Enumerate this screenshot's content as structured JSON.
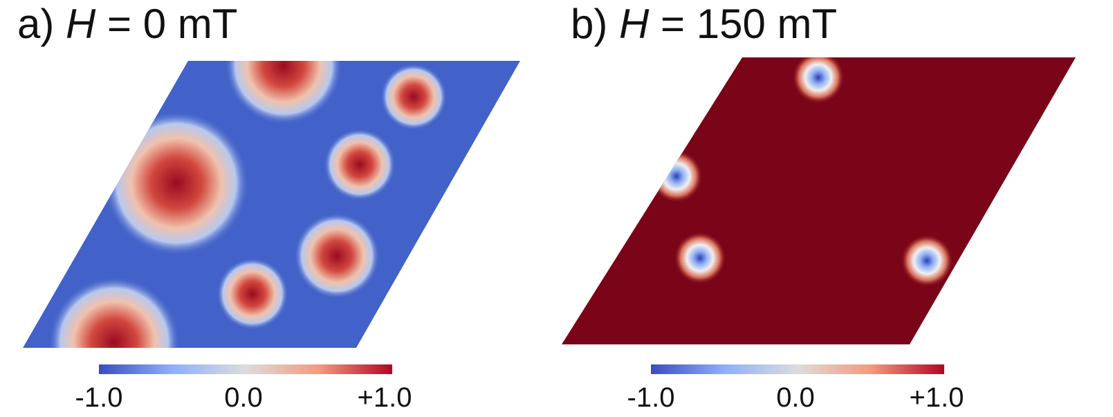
{
  "panels": [
    {
      "label": "a)",
      "symbol": "H",
      "condition": "= 0 mT",
      "colorbar": {
        "ticks": [
          "-1.0",
          "0.0",
          "+1.0"
        ]
      }
    },
    {
      "label": "b)",
      "symbol": "H",
      "condition": "= 150 mT",
      "colorbar": {
        "ticks": [
          "-1.0",
          "0.0",
          "+1.0"
        ]
      }
    }
  ]
}
